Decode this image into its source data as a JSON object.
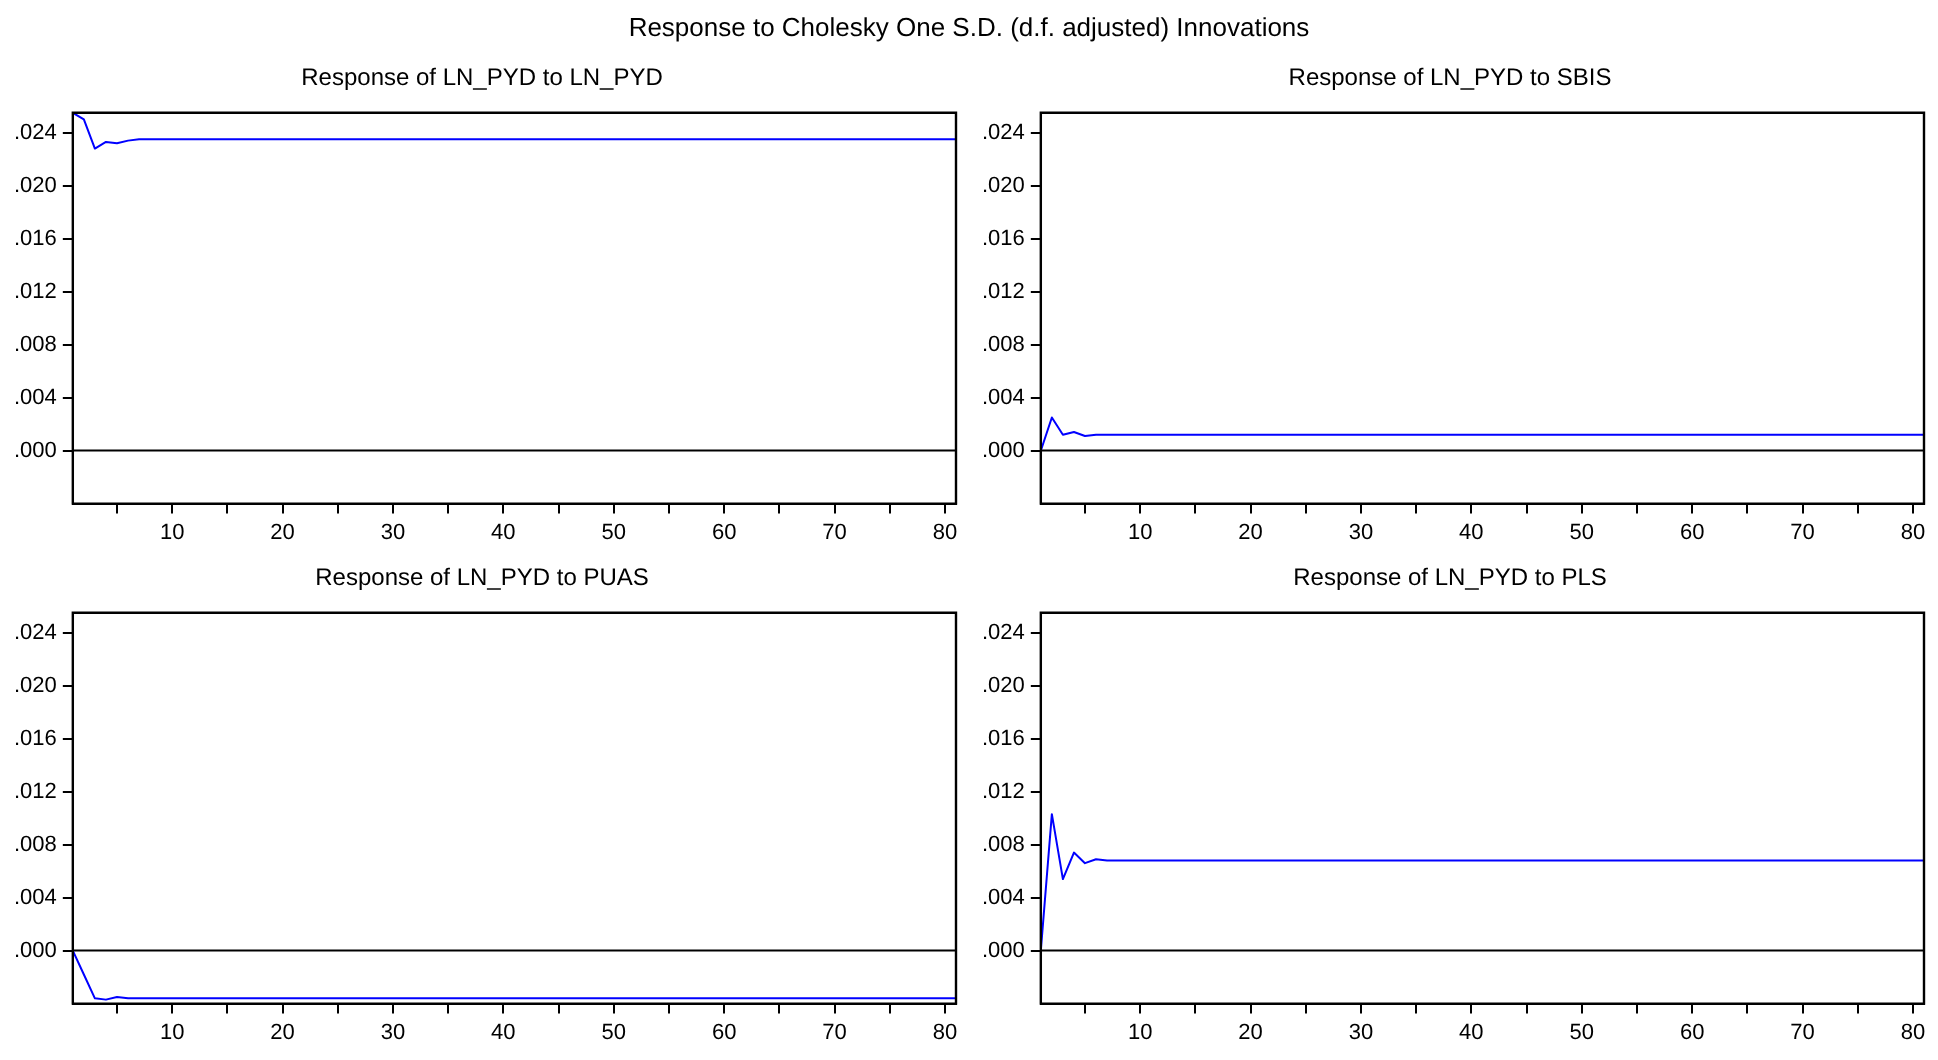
{
  "chart_data": [
    {
      "type": "line",
      "title": "Response of LN_PYD to LN_PYD",
      "annotations": [
        "Response to Cholesky One S.D. (d.f. adjusted) Innovations"
      ],
      "x": [
        1,
        2,
        3,
        4,
        5,
        6,
        7,
        8,
        81
      ],
      "series": [
        {
          "color": "#0000ff",
          "values": [
            0.0255,
            0.025,
            0.0228,
            0.0233,
            0.0232,
            0.0234,
            0.0235,
            0.0235,
            0.0235
          ]
        }
      ],
      "xlim": [
        1,
        81
      ],
      "xticks": [
        {
          "value": 5,
          "label": null
        },
        10,
        {
          "value": 15,
          "label": null
        },
        20,
        {
          "value": 25,
          "label": null
        },
        30,
        {
          "value": 35,
          "label": null
        },
        40,
        {
          "value": 45,
          "label": null
        },
        50,
        {
          "value": 55,
          "label": null
        },
        60,
        {
          "value": 65,
          "label": null
        },
        70,
        {
          "value": 75,
          "label": null
        },
        80
      ],
      "ylim": [
        -0.004,
        0.0255
      ],
      "yticks": [
        {
          "value": 0,
          "label": ".000"
        },
        {
          "value": 0.004,
          "label": ".004"
        },
        {
          "value": 0.008,
          "label": ".008"
        },
        {
          "value": 0.012,
          "label": ".012"
        },
        {
          "value": 0.016,
          "label": ".016"
        },
        {
          "value": 0.02,
          "label": ".020"
        },
        {
          "value": 0.024,
          "label": ".024"
        }
      ],
      "ref_lines": [
        {
          "axis": "y",
          "value": 0,
          "color": "#000000"
        }
      ],
      "grid": false,
      "legend": false,
      "marker": "none",
      "line_style": "solid"
    },
    {
      "type": "line",
      "title": "Response of LN_PYD to SBIS",
      "x": [
        1,
        2,
        3,
        4,
        5,
        6,
        7,
        8,
        81
      ],
      "series": [
        {
          "color": "#0000ff",
          "values": [
            0,
            0.0025,
            0.0012,
            0.0014,
            0.0011,
            0.0012,
            0.0012,
            0.0012,
            0.0012
          ]
        }
      ],
      "xlim": [
        1,
        81
      ],
      "xticks": [
        {
          "value": 5,
          "label": null
        },
        10,
        {
          "value": 15,
          "label": null
        },
        20,
        {
          "value": 25,
          "label": null
        },
        30,
        {
          "value": 35,
          "label": null
        },
        40,
        {
          "value": 45,
          "label": null
        },
        50,
        {
          "value": 55,
          "label": null
        },
        60,
        {
          "value": 65,
          "label": null
        },
        70,
        {
          "value": 75,
          "label": null
        },
        80
      ],
      "ylim": [
        -0.004,
        0.0255
      ],
      "yticks": [
        {
          "value": 0,
          "label": ".000"
        },
        {
          "value": 0.004,
          "label": ".004"
        },
        {
          "value": 0.008,
          "label": ".008"
        },
        {
          "value": 0.012,
          "label": ".012"
        },
        {
          "value": 0.016,
          "label": ".016"
        },
        {
          "value": 0.02,
          "label": ".020"
        },
        {
          "value": 0.024,
          "label": ".024"
        }
      ],
      "ref_lines": [
        {
          "axis": "y",
          "value": 0,
          "color": "#000000"
        }
      ],
      "grid": false,
      "legend": false,
      "marker": "none",
      "line_style": "solid"
    },
    {
      "type": "line",
      "title": "Response of LN_PYD to PUAS",
      "x": [
        1,
        2,
        3,
        4,
        5,
        6,
        7,
        8,
        81
      ],
      "series": [
        {
          "color": "#0000ff",
          "values": [
            0,
            -0.0018,
            -0.0036,
            -0.0037,
            -0.0035,
            -0.0036,
            -0.0036,
            -0.0036,
            -0.0036
          ]
        }
      ],
      "xlim": [
        1,
        81
      ],
      "xticks": [
        {
          "value": 5,
          "label": null
        },
        10,
        {
          "value": 15,
          "label": null
        },
        20,
        {
          "value": 25,
          "label": null
        },
        30,
        {
          "value": 35,
          "label": null
        },
        40,
        {
          "value": 45,
          "label": null
        },
        50,
        {
          "value": 55,
          "label": null
        },
        60,
        {
          "value": 65,
          "label": null
        },
        70,
        {
          "value": 75,
          "label": null
        },
        80
      ],
      "ylim": [
        -0.004,
        0.0255
      ],
      "yticks": [
        {
          "value": 0,
          "label": ".000"
        },
        {
          "value": 0.004,
          "label": ".004"
        },
        {
          "value": 0.008,
          "label": ".008"
        },
        {
          "value": 0.012,
          "label": ".012"
        },
        {
          "value": 0.016,
          "label": ".016"
        },
        {
          "value": 0.02,
          "label": ".020"
        },
        {
          "value": 0.024,
          "label": ".024"
        }
      ],
      "ref_lines": [
        {
          "axis": "y",
          "value": 0,
          "color": "#000000"
        }
      ],
      "grid": false,
      "legend": false,
      "marker": "none",
      "line_style": "solid"
    },
    {
      "type": "line",
      "title": "Response of LN_PYD to PLS",
      "x": [
        1,
        2,
        3,
        4,
        5,
        6,
        7,
        8,
        81
      ],
      "series": [
        {
          "color": "#0000ff",
          "values": [
            0,
            0.0103,
            0.0054,
            0.0074,
            0.0066,
            0.0069,
            0.0068,
            0.0068,
            0.0068
          ]
        }
      ],
      "xlim": [
        1,
        81
      ],
      "xticks": [
        {
          "value": 5,
          "label": null
        },
        10,
        {
          "value": 15,
          "label": null
        },
        20,
        {
          "value": 25,
          "label": null
        },
        30,
        {
          "value": 35,
          "label": null
        },
        40,
        {
          "value": 45,
          "label": null
        },
        50,
        {
          "value": 55,
          "label": null
        },
        60,
        {
          "value": 65,
          "label": null
        },
        70,
        {
          "value": 75,
          "label": null
        },
        80
      ],
      "ylim": [
        -0.004,
        0.0255
      ],
      "yticks": [
        {
          "value": 0,
          "label": ".000"
        },
        {
          "value": 0.004,
          "label": ".004"
        },
        {
          "value": 0.008,
          "label": ".008"
        },
        {
          "value": 0.012,
          "label": ".012"
        },
        {
          "value": 0.016,
          "label": ".016"
        },
        {
          "value": 0.02,
          "label": ".020"
        },
        {
          "value": 0.024,
          "label": ".024"
        }
      ],
      "ref_lines": [
        {
          "axis": "y",
          "value": 0,
          "color": "#000000"
        }
      ],
      "grid": false,
      "legend": false,
      "marker": "none",
      "line_style": "solid"
    }
  ]
}
